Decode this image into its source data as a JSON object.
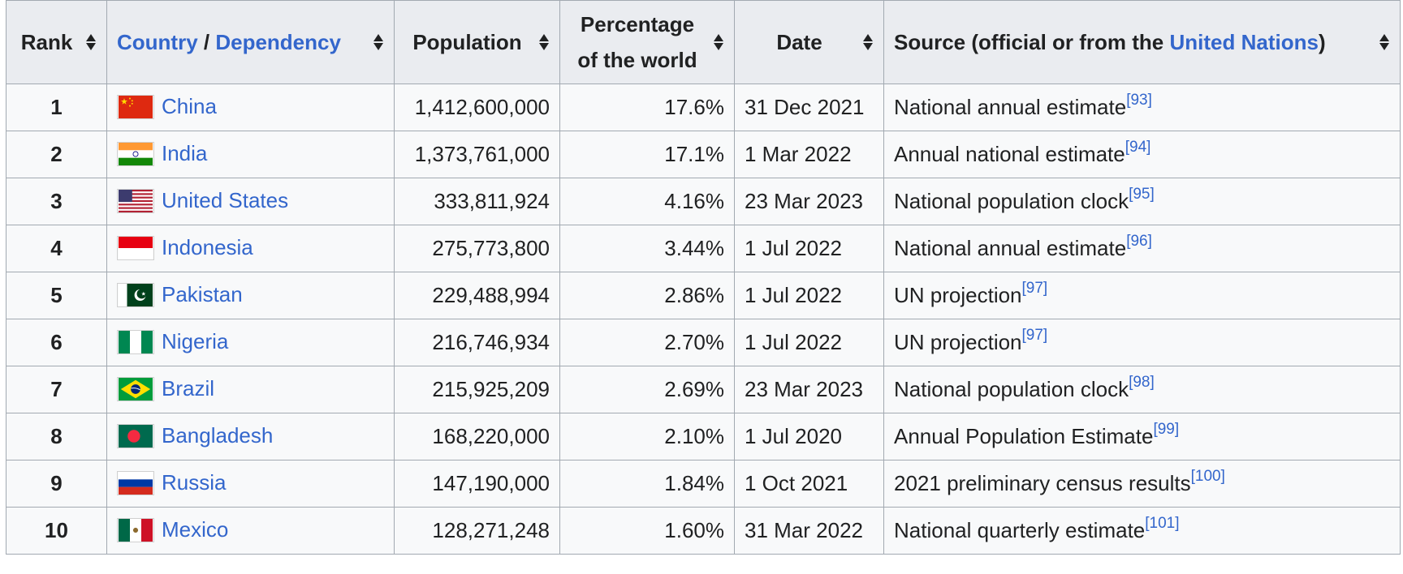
{
  "table": {
    "headers": {
      "rank": "Rank",
      "country_link": "Country",
      "slash": " / ",
      "dependency_link": "Dependency",
      "population": "Population",
      "percentage_line1": "Percentage",
      "percentage_line2": "of the world",
      "date": "Date",
      "source_prefix": "Source (official or from the ",
      "source_link": "United Nations",
      "source_suffix": ")"
    },
    "rows": [
      {
        "rank": "1",
        "country": "China",
        "flag": "china-flag",
        "population": "1,412,600,000",
        "percentage": "17.6%",
        "date": "31 Dec 2021",
        "source": "National annual estimate",
        "ref": "[93]"
      },
      {
        "rank": "2",
        "country": "India",
        "flag": "india-flag",
        "population": "1,373,761,000",
        "percentage": "17.1%",
        "date": "1 Mar 2022",
        "source": "Annual national estimate",
        "ref": "[94]"
      },
      {
        "rank": "3",
        "country": "United States",
        "flag": "united-states-flag",
        "population": "333,811,924",
        "percentage": "4.16%",
        "date": "23 Mar 2023",
        "source": "National population clock",
        "ref": "[95]"
      },
      {
        "rank": "4",
        "country": "Indonesia",
        "flag": "indonesia-flag",
        "population": "275,773,800",
        "percentage": "3.44%",
        "date": "1 Jul 2022",
        "source": "National annual estimate",
        "ref": "[96]"
      },
      {
        "rank": "5",
        "country": "Pakistan",
        "flag": "pakistan-flag",
        "population": "229,488,994",
        "percentage": "2.86%",
        "date": "1 Jul 2022",
        "source": "UN projection",
        "ref": "[97]"
      },
      {
        "rank": "6",
        "country": "Nigeria",
        "flag": "nigeria-flag",
        "population": "216,746,934",
        "percentage": "2.70%",
        "date": "1 Jul 2022",
        "source": "UN projection",
        "ref": "[97]"
      },
      {
        "rank": "7",
        "country": "Brazil",
        "flag": "brazil-flag",
        "population": "215,925,209",
        "percentage": "2.69%",
        "date": "23 Mar 2023",
        "source": "National population clock",
        "ref": "[98]"
      },
      {
        "rank": "8",
        "country": "Bangladesh",
        "flag": "bangladesh-flag",
        "population": "168,220,000",
        "percentage": "2.10%",
        "date": "1 Jul 2020",
        "source": "Annual Population Estimate",
        "ref": "[99]"
      },
      {
        "rank": "9",
        "country": "Russia",
        "flag": "russia-flag",
        "population": "147,190,000",
        "percentage": "1.84%",
        "date": "1 Oct 2021",
        "source": "2021 preliminary census results",
        "ref": "[100]"
      },
      {
        "rank": "10",
        "country": "Mexico",
        "flag": "mexico-flag",
        "population": "128,271,248",
        "percentage": "1.60%",
        "date": "31 Mar 2022",
        "source": "National quarterly estimate",
        "ref": "[101]"
      }
    ]
  },
  "colors": {
    "link": "#3366cc",
    "header_bg": "#eaecf0",
    "cell_bg": "#f8f9fa",
    "border": "#a2a9b1"
  },
  "icons": {
    "sort": "sort-arrows-icon"
  }
}
